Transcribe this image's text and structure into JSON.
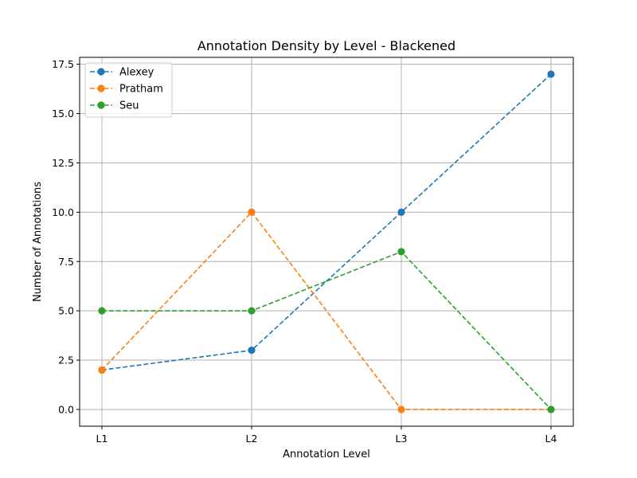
{
  "chart_data": {
    "type": "line",
    "title": "Annotation Density by Level - Blackened",
    "xlabel": "Annotation Level",
    "ylabel": "Number of Annotations",
    "categories": [
      "L1",
      "L2",
      "L3",
      "L4"
    ],
    "ylim": [
      -0.85,
      17.85
    ],
    "yticks": [
      0.0,
      2.5,
      5.0,
      7.5,
      10.0,
      12.5,
      15.0,
      17.5
    ],
    "ytick_labels": [
      "0.0",
      "2.5",
      "5.0",
      "7.5",
      "10.0",
      "12.5",
      "15.0",
      "17.5"
    ],
    "grid": true,
    "legend_position": "upper-left",
    "line_style": "dashed",
    "marker": "circle",
    "series": [
      {
        "name": "Alexey",
        "color": "#1f77b4",
        "values": [
          2,
          3,
          10,
          17
        ]
      },
      {
        "name": "Pratham",
        "color": "#ff7f0e",
        "values": [
          2,
          10,
          0,
          0
        ]
      },
      {
        "name": "Seu",
        "color": "#2ca02c",
        "values": [
          5,
          5,
          8,
          0
        ]
      }
    ]
  }
}
